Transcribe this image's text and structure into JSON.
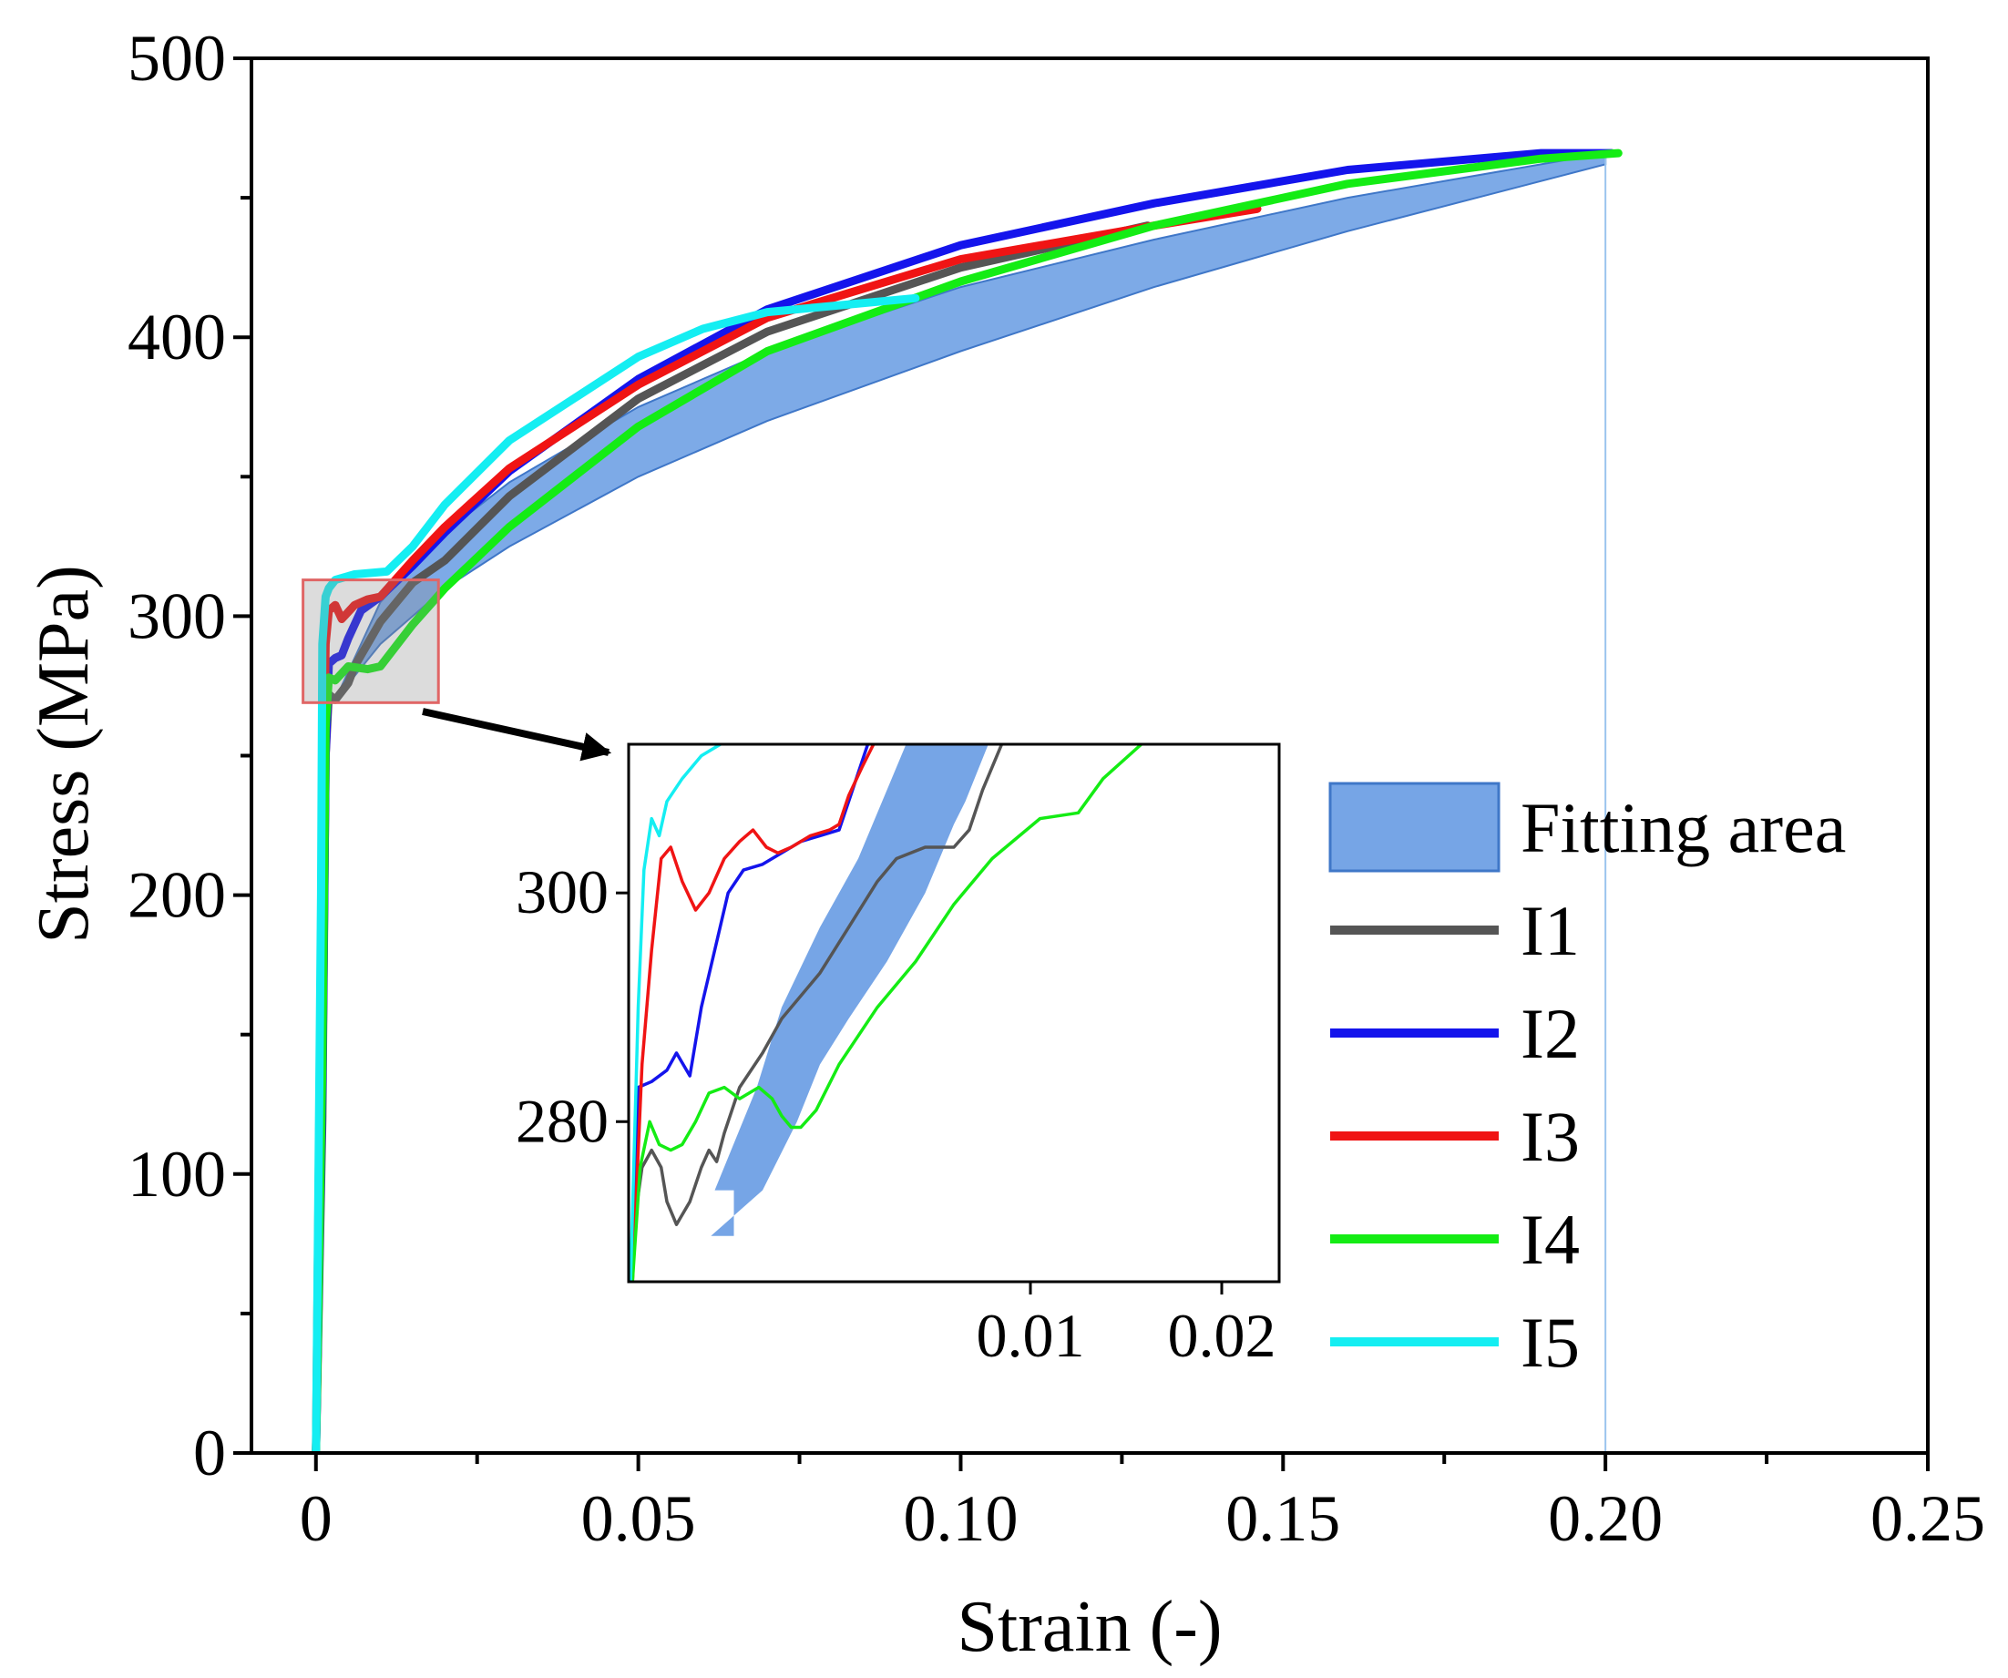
{
  "chart_data": {
    "type": "line",
    "xlabel": "Strain (-)",
    "ylabel": "Stress (MPa)",
    "xlim": [
      -0.01,
      0.25
    ],
    "ylim": [
      0,
      500
    ],
    "x_ticks": [
      {
        "value": 0,
        "label": "0"
      },
      {
        "value": 0.05,
        "label": "0.05"
      },
      {
        "value": 0.1,
        "label": "0.10"
      },
      {
        "value": 0.15,
        "label": "0.15"
      },
      {
        "value": 0.2,
        "label": "0.20"
      },
      {
        "value": 0.25,
        "label": "0.25"
      }
    ],
    "y_ticks": [
      {
        "value": 0,
        "label": "0"
      },
      {
        "value": 100,
        "label": "100"
      },
      {
        "value": 200,
        "label": "200"
      },
      {
        "value": 300,
        "label": "300"
      },
      {
        "value": 400,
        "label": "400"
      },
      {
        "value": 500,
        "label": "500"
      }
    ],
    "legend_position": "right",
    "legend": [
      {
        "label": "Fitting area",
        "color": "#76A5E6",
        "kind": "area"
      },
      {
        "label": "I1",
        "color": "#555555",
        "kind": "line"
      },
      {
        "label": "I2",
        "color": "#1414EC",
        "kind": "line"
      },
      {
        "label": "I3",
        "color": "#F01414",
        "kind": "line"
      },
      {
        "label": "I4",
        "color": "#14EC14",
        "kind": "line"
      },
      {
        "label": "I5",
        "color": "#14EEF2",
        "kind": "line"
      }
    ],
    "fitting_area": {
      "color": "#76A5E6",
      "upper": [
        [
          0.003,
          270
        ],
        [
          0.006,
          285
        ],
        [
          0.01,
          305
        ],
        [
          0.02,
          330
        ],
        [
          0.03,
          348
        ],
        [
          0.05,
          375
        ],
        [
          0.07,
          395
        ],
        [
          0.1,
          418
        ],
        [
          0.13,
          435
        ],
        [
          0.16,
          450
        ],
        [
          0.2,
          466
        ]
      ],
      "lower": [
        [
          0.003,
          270
        ],
        [
          0.01,
          290
        ],
        [
          0.02,
          310
        ],
        [
          0.03,
          325
        ],
        [
          0.05,
          350
        ],
        [
          0.07,
          370
        ],
        [
          0.1,
          395
        ],
        [
          0.13,
          418
        ],
        [
          0.16,
          438
        ],
        [
          0.2,
          462
        ]
      ]
    },
    "series": [
      {
        "name": "I1",
        "color": "#555555",
        "points": [
          [
            0,
            0
          ],
          [
            0.001,
            120
          ],
          [
            0.0015,
            250
          ],
          [
            0.002,
            272
          ],
          [
            0.003,
            270
          ],
          [
            0.005,
            276
          ],
          [
            0.006,
            282
          ],
          [
            0.01,
            298
          ],
          [
            0.015,
            312
          ],
          [
            0.02,
            320
          ],
          [
            0.03,
            343
          ],
          [
            0.05,
            378
          ],
          [
            0.07,
            402
          ],
          [
            0.1,
            425
          ],
          [
            0.129,
            440
          ]
        ]
      },
      {
        "name": "I2",
        "color": "#1414EC",
        "points": [
          [
            0,
            0
          ],
          [
            0.001,
            130
          ],
          [
            0.0015,
            250
          ],
          [
            0.002,
            283
          ],
          [
            0.003,
            285
          ],
          [
            0.004,
            286
          ],
          [
            0.005,
            292
          ],
          [
            0.007,
            302
          ],
          [
            0.01,
            307
          ],
          [
            0.015,
            318
          ],
          [
            0.02,
            330
          ],
          [
            0.03,
            352
          ],
          [
            0.05,
            385
          ],
          [
            0.07,
            410
          ],
          [
            0.1,
            433
          ],
          [
            0.13,
            448
          ],
          [
            0.16,
            460
          ],
          [
            0.19,
            466
          ],
          [
            0.201,
            466
          ]
        ]
      },
      {
        "name": "I3",
        "color": "#F01414",
        "points": [
          [
            0,
            0
          ],
          [
            0.0008,
            180
          ],
          [
            0.0015,
            290
          ],
          [
            0.002,
            302
          ],
          [
            0.003,
            304
          ],
          [
            0.004,
            299
          ],
          [
            0.006,
            304
          ],
          [
            0.008,
            306
          ],
          [
            0.01,
            307
          ],
          [
            0.015,
            320
          ],
          [
            0.02,
            332
          ],
          [
            0.03,
            353
          ],
          [
            0.05,
            383
          ],
          [
            0.07,
            407
          ],
          [
            0.1,
            428
          ],
          [
            0.13,
            440
          ],
          [
            0.146,
            446
          ]
        ]
      },
      {
        "name": "I4",
        "color": "#14EC14",
        "points": [
          [
            0,
            0
          ],
          [
            0.001,
            140
          ],
          [
            0.0015,
            260
          ],
          [
            0.002,
            278
          ],
          [
            0.003,
            277
          ],
          [
            0.005,
            282
          ],
          [
            0.008,
            281
          ],
          [
            0.01,
            282
          ],
          [
            0.015,
            297
          ],
          [
            0.02,
            310
          ],
          [
            0.03,
            332
          ],
          [
            0.05,
            368
          ],
          [
            0.07,
            395
          ],
          [
            0.1,
            420
          ],
          [
            0.13,
            440
          ],
          [
            0.16,
            455
          ],
          [
            0.19,
            464
          ],
          [
            0.202,
            466
          ]
        ]
      },
      {
        "name": "I5",
        "color": "#14EEF2",
        "points": [
          [
            0,
            0
          ],
          [
            0.0008,
            200
          ],
          [
            0.001,
            290
          ],
          [
            0.0015,
            307
          ],
          [
            0.002,
            310
          ],
          [
            0.003,
            313
          ],
          [
            0.006,
            315
          ],
          [
            0.011,
            316
          ],
          [
            0.015,
            325
          ],
          [
            0.02,
            340
          ],
          [
            0.03,
            363
          ],
          [
            0.05,
            393
          ],
          [
            0.06,
            403
          ],
          [
            0.07,
            409
          ],
          [
            0.093,
            414
          ]
        ]
      }
    ],
    "zoom_box": {
      "x_range": [
        -0.002,
        0.019
      ],
      "y_range": [
        269,
        313
      ]
    },
    "inset": {
      "xlim": [
        -0.011,
        0.023
      ],
      "ylim": [
        266,
        313
      ],
      "x_ticks": [
        {
          "value": 0.01,
          "label": "0.01"
        },
        {
          "value": 0.02,
          "label": "0.02"
        }
      ],
      "y_ticks": [
        {
          "value": 280,
          "label": "280"
        },
        {
          "value": 300,
          "label": "300"
        }
      ],
      "fitting_area": [
        [
          -0.0105,
          270
        ],
        [
          -0.0055,
          270
        ],
        [
          -0.0055,
          274
        ],
        [
          -0.0065,
          274
        ],
        [
          -0.0043,
          283
        ],
        [
          -0.003,
          290
        ],
        [
          -0.001,
          297
        ],
        [
          0.001,
          303
        ],
        [
          0.0025,
          309
        ],
        [
          0.0035,
          313
        ],
        [
          0.0078,
          313
        ],
        [
          0.0066,
          308
        ],
        [
          0.006,
          306
        ],
        [
          0.0045,
          300
        ],
        [
          0.0025,
          294
        ],
        [
          0.0005,
          289
        ],
        [
          -0.001,
          285
        ],
        [
          -0.0022,
          280
        ],
        [
          -0.004,
          274
        ],
        [
          -0.0067,
          270
        ]
      ],
      "series": [
        {
          "name": "I1",
          "points": [
            [
              -0.0108,
              270
            ],
            [
              -0.0103,
              276
            ],
            [
              -0.0098,
              277.5
            ],
            [
              -0.0093,
              276
            ],
            [
              -0.009,
              273
            ],
            [
              -0.0085,
              271
            ],
            [
              -0.0078,
              273
            ],
            [
              -0.0072,
              276
            ],
            [
              -0.0068,
              277.5
            ],
            [
              -0.0064,
              276.5
            ],
            [
              -0.006,
              279
            ],
            [
              -0.0052,
              283
            ],
            [
              -0.004,
              286
            ],
            [
              -0.003,
              289
            ],
            [
              -0.001,
              293
            ],
            [
              0.0005,
              297
            ],
            [
              0.002,
              301
            ],
            [
              0.003,
              303
            ],
            [
              0.0045,
              304
            ],
            [
              0.006,
              304
            ],
            [
              0.0068,
              305.5
            ],
            [
              0.0075,
              309
            ],
            [
              0.0085,
              313
            ]
          ]
        },
        {
          "name": "I2",
          "points": [
            [
              -0.0108,
              266
            ],
            [
              -0.0105,
              283
            ],
            [
              -0.0098,
              283.5
            ],
            [
              -0.009,
              284.5
            ],
            [
              -0.0085,
              286
            ],
            [
              -0.0078,
              284
            ],
            [
              -0.0072,
              290
            ],
            [
              -0.0065,
              295
            ],
            [
              -0.0058,
              300
            ],
            [
              -0.005,
              302
            ],
            [
              -0.004,
              302.5
            ],
            [
              -0.003,
              303.5
            ],
            [
              -0.002,
              304.5
            ],
            [
              -0.001,
              305
            ],
            [
              0.0,
              305.5
            ],
            [
              0.0005,
              308
            ],
            [
              0.0015,
              313
            ]
          ]
        },
        {
          "name": "I3",
          "points": [
            [
              -0.0108,
              266
            ],
            [
              -0.0103,
              285
            ],
            [
              -0.0098,
              295
            ],
            [
              -0.0093,
              303
            ],
            [
              -0.0088,
              304
            ],
            [
              -0.0082,
              301
            ],
            [
              -0.0075,
              298.5
            ],
            [
              -0.0068,
              300
            ],
            [
              -0.006,
              303
            ],
            [
              -0.0052,
              304.5
            ],
            [
              -0.0045,
              305.5
            ],
            [
              -0.0038,
              304
            ],
            [
              -0.0032,
              303.5
            ],
            [
              -0.0025,
              304
            ],
            [
              -0.0015,
              305
            ],
            [
              -0.0005,
              305.5
            ],
            [
              0.0,
              306
            ],
            [
              0.0005,
              308.5
            ],
            [
              0.0012,
              311
            ],
            [
              0.0018,
              313
            ]
          ]
        },
        {
          "name": "I4",
          "points": [
            [
              -0.0108,
              266
            ],
            [
              -0.0104,
              276
            ],
            [
              -0.0099,
              280
            ],
            [
              -0.0094,
              278
            ],
            [
              -0.0088,
              277.5
            ],
            [
              -0.0082,
              278
            ],
            [
              -0.0075,
              280
            ],
            [
              -0.0068,
              282.5
            ],
            [
              -0.006,
              283
            ],
            [
              -0.0052,
              282
            ],
            [
              -0.0042,
              283
            ],
            [
              -0.0035,
              282
            ],
            [
              -0.003,
              280.5
            ],
            [
              -0.0025,
              279.5
            ],
            [
              -0.002,
              279.5
            ],
            [
              -0.0012,
              281
            ],
            [
              0.0,
              285
            ],
            [
              0.002,
              290
            ],
            [
              0.004,
              294
            ],
            [
              0.006,
              299
            ],
            [
              0.008,
              303
            ],
            [
              0.0105,
              306.5
            ],
            [
              0.0125,
              307
            ],
            [
              0.0138,
              310
            ],
            [
              0.0158,
              313
            ]
          ]
        },
        {
          "name": "I5",
          "points": [
            [
              -0.0109,
              266
            ],
            [
              -0.0105,
              290
            ],
            [
              -0.0102,
              302
            ],
            [
              -0.0098,
              306.5
            ],
            [
              -0.0094,
              305
            ],
            [
              -0.009,
              308
            ],
            [
              -0.0082,
              310
            ],
            [
              -0.0072,
              312
            ],
            [
              -0.0062,
              313
            ]
          ]
        }
      ]
    }
  }
}
